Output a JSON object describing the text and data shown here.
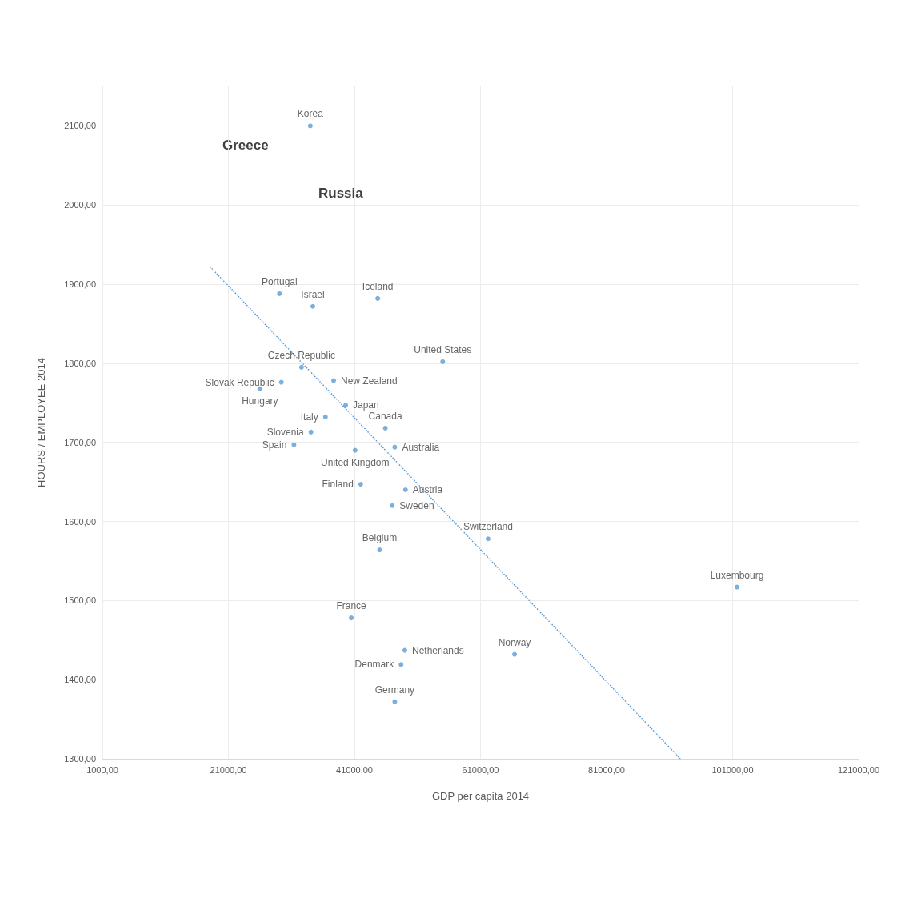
{
  "chart_data": {
    "type": "scatter",
    "xlabel": "GDP per capita 2014",
    "ylabel": "HOURS / EMPLOYEE 2014",
    "xlim": [
      1000,
      121000
    ],
    "xticks": [
      {
        "value": 1000,
        "label": "1000,00"
      },
      {
        "value": 21000,
        "label": "21000,00"
      },
      {
        "value": 41000,
        "label": "41000,00"
      },
      {
        "value": 61000,
        "label": "61000,00"
      },
      {
        "value": 81000,
        "label": "81000,00"
      },
      {
        "value": 101000,
        "label": "101000,00"
      },
      {
        "value": 121000,
        "label": "121000,00"
      }
    ],
    "ylim": [
      1300,
      2150
    ],
    "yticks": [
      {
        "value": 1300,
        "label": "1300,00"
      },
      {
        "value": 1400,
        "label": "1400,00"
      },
      {
        "value": 1500,
        "label": "1500,00"
      },
      {
        "value": 1600,
        "label": "1600,00"
      },
      {
        "value": 1700,
        "label": "1700,00"
      },
      {
        "value": 1800,
        "label": "1800,00"
      },
      {
        "value": 1900,
        "label": "1900,00"
      },
      {
        "value": 2000,
        "label": "2000,00"
      },
      {
        "value": 2100,
        "label": "2100,00"
      }
    ],
    "grid": true,
    "marker": "circle",
    "legend": false,
    "annotations": [
      {
        "text": "Greece"
      },
      {
        "text": "Russia"
      }
    ],
    "series": [
      {
        "name": "Korea",
        "color": "#5b9bd5",
        "x": [
          34000
        ],
        "values": [
          2100
        ]
      },
      {
        "name": "Portugal",
        "color": "#5b9bd5",
        "x": [
          29100
        ],
        "values": [
          1888
        ]
      },
      {
        "name": "Israel",
        "color": "#5b9bd5",
        "x": [
          34400
        ],
        "values": [
          1872
        ]
      },
      {
        "name": "Iceland",
        "color": "#5b9bd5",
        "x": [
          44700
        ],
        "values": [
          1882
        ]
      },
      {
        "name": "Czech Republic",
        "color": "#5b9bd5",
        "x": [
          32600
        ],
        "values": [
          1795
        ]
      },
      {
        "name": "United States",
        "color": "#5b9bd5",
        "x": [
          55000
        ],
        "values": [
          1802
        ]
      },
      {
        "name": "New Zealand",
        "color": "#5b9bd5",
        "x": [
          37700
        ],
        "values": [
          1778
        ]
      },
      {
        "name": "Japan",
        "color": "#5b9bd5",
        "x": [
          39600
        ],
        "values": [
          1747
        ]
      },
      {
        "name": "Hungary",
        "color": "#5b9bd5",
        "x": [
          26000
        ],
        "values": [
          1768
        ]
      },
      {
        "name": "Slovak Republic",
        "color": "#5b9bd5",
        "x": [
          29400
        ],
        "values": [
          1776
        ]
      },
      {
        "name": "Italy",
        "color": "#5b9bd5",
        "x": [
          36400
        ],
        "values": [
          1732
        ]
      },
      {
        "name": "Canada",
        "color": "#5b9bd5",
        "x": [
          45900
        ],
        "values": [
          1718
        ]
      },
      {
        "name": "Australia",
        "color": "#5b9bd5",
        "x": [
          47400
        ],
        "values": [
          1694
        ]
      },
      {
        "name": "Slovenia",
        "color": "#5b9bd5",
        "x": [
          34100
        ],
        "values": [
          1713
        ]
      },
      {
        "name": "Spain",
        "color": "#5b9bd5",
        "x": [
          31400
        ],
        "values": [
          1697
        ]
      },
      {
        "name": "United Kingdom",
        "color": "#5b9bd5",
        "x": [
          41100
        ],
        "values": [
          1690
        ]
      },
      {
        "name": "Finland",
        "color": "#5b9bd5",
        "x": [
          42000
        ],
        "values": [
          1647
        ]
      },
      {
        "name": "Austria",
        "color": "#5b9bd5",
        "x": [
          49100
        ],
        "values": [
          1640
        ]
      },
      {
        "name": "Sweden",
        "color": "#5b9bd5",
        "x": [
          47000
        ],
        "values": [
          1620
        ]
      },
      {
        "name": "Belgium",
        "color": "#5b9bd5",
        "x": [
          45000
        ],
        "values": [
          1564
        ]
      },
      {
        "name": "Switzerland",
        "color": "#5b9bd5",
        "x": [
          62200
        ],
        "values": [
          1578
        ]
      },
      {
        "name": "Luxembourg",
        "color": "#5b9bd5",
        "x": [
          101700
        ],
        "values": [
          1517
        ]
      },
      {
        "name": "France",
        "color": "#5b9bd5",
        "x": [
          40500
        ],
        "values": [
          1478
        ]
      },
      {
        "name": "Netherlands",
        "color": "#5b9bd5",
        "x": [
          49000
        ],
        "values": [
          1437
        ]
      },
      {
        "name": "Denmark",
        "color": "#5b9bd5",
        "x": [
          48400
        ],
        "values": [
          1419
        ]
      },
      {
        "name": "Norway",
        "color": "#5b9bd5",
        "x": [
          66400
        ],
        "values": [
          1432
        ]
      },
      {
        "name": "Germany",
        "color": "#5b9bd5",
        "x": [
          47400
        ],
        "values": [
          1372
        ]
      },
      {
        "type": "line",
        "color": "#5b9bd5",
        "line_style": "dotted",
        "marker": "none",
        "x": [
          18100,
          92700
        ],
        "values": [
          1922,
          1300
        ]
      }
    ]
  }
}
